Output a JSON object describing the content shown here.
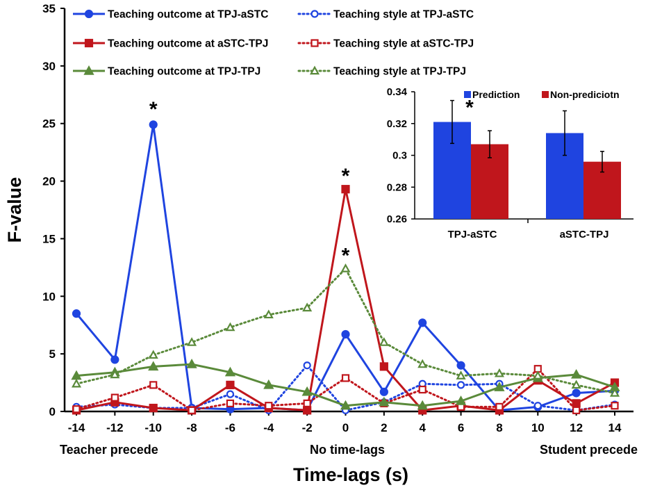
{
  "chart_data": [
    {
      "type": "line",
      "xlabel": "Time-lags (s)",
      "ylabel": "F-value",
      "x": [
        -14,
        -12,
        -10,
        -8,
        -6,
        -4,
        -2,
        0,
        2,
        4,
        6,
        8,
        10,
        12,
        14
      ],
      "x_tick_labels": [
        "-14",
        "-12",
        "-10",
        "-8",
        "-6",
        "-4",
        "-2",
        "0",
        "2",
        "4",
        "6",
        "8",
        "10",
        "12",
        "14"
      ],
      "ylim": [
        0,
        35
      ],
      "y_ticks": [
        0,
        5,
        10,
        15,
        20,
        25,
        30,
        35
      ],
      "grid": false,
      "legend_position": "top-left",
      "series": [
        {
          "name": "Teaching outcome at TPJ-aSTC",
          "color": "#1F44E0",
          "line": "solid",
          "marker": "circle",
          "filled": true,
          "values": [
            8.5,
            4.5,
            24.9,
            0.3,
            0.2,
            0.3,
            0.1,
            6.7,
            1.7,
            7.7,
            4.0,
            0.1,
            0.4,
            1.6,
            1.8
          ]
        },
        {
          "name": "Teaching style at TPJ-aSTC",
          "color": "#1F44E0",
          "line": "dotted",
          "marker": "circle",
          "filled": false,
          "values": [
            0.4,
            0.6,
            0.3,
            0.3,
            1.5,
            0.1,
            4.0,
            0.1,
            0.8,
            2.4,
            2.3,
            2.4,
            0.5,
            0.1,
            0.6
          ]
        },
        {
          "name": "Teaching outcome at aSTC-TPJ",
          "color": "#C0161C",
          "line": "solid",
          "marker": "square",
          "filled": true,
          "values": [
            0.1,
            0.8,
            0.3,
            0.1,
            2.3,
            0.3,
            0.1,
            19.3,
            3.9,
            0.1,
            0.5,
            0.1,
            2.7,
            0.7,
            2.5
          ]
        },
        {
          "name": "Teaching style at aSTC-TPJ",
          "color": "#C0161C",
          "line": "dotted",
          "marker": "square",
          "filled": false,
          "values": [
            0.2,
            1.2,
            2.3,
            0.1,
            0.7,
            0.5,
            0.7,
            2.9,
            0.7,
            1.9,
            0.4,
            0.4,
            3.7,
            0.1,
            0.5
          ]
        },
        {
          "name": "Teaching outcome at TPJ-TPJ",
          "color": "#5A8A3A",
          "line": "solid",
          "marker": "triangle",
          "filled": true,
          "values": [
            3.1,
            3.4,
            3.9,
            4.1,
            3.4,
            2.3,
            1.7,
            0.5,
            0.8,
            0.5,
            0.9,
            2.1,
            2.9,
            3.2,
            2.1
          ]
        },
        {
          "name": "Teaching style at TPJ-TPJ",
          "color": "#5A8A3A",
          "line": "dotted",
          "marker": "triangle",
          "filled": false,
          "values": [
            2.4,
            3.2,
            4.9,
            6.0,
            7.3,
            8.4,
            9.0,
            12.4,
            6.0,
            4.1,
            3.1,
            3.3,
            3.1,
            2.3,
            1.6
          ]
        }
      ],
      "region_labels": [
        "Teacher precede",
        "No time-lags",
        "Student precede"
      ],
      "annotations": [
        {
          "text": "*",
          "x": -10,
          "y": 26.5
        },
        {
          "text": "*",
          "x": 0,
          "y": 20.7
        },
        {
          "text": "*",
          "x": 0,
          "y": 13.8
        }
      ]
    },
    {
      "type": "bar",
      "categories": [
        "TPJ-aSTC",
        "aSTC-TPJ"
      ],
      "ylim": [
        0.26,
        0.34
      ],
      "y_ticks": [
        0.26,
        0.28,
        0.3,
        0.32,
        0.34
      ],
      "y_tick_labels": [
        "0.26",
        "0.28",
        "0.3",
        "0.32",
        "0.34"
      ],
      "legend_position": "top",
      "series": [
        {
          "name": "Prediction",
          "color": "#1F44E0",
          "values": [
            0.321,
            0.314
          ],
          "errors": [
            0.0135,
            0.014
          ]
        },
        {
          "name": "Non-prediciotn",
          "color": "#C0161C",
          "values": [
            0.307,
            0.296
          ],
          "errors": [
            0.0085,
            0.0065
          ]
        }
      ],
      "annotations": [
        {
          "text": "*",
          "category": "TPJ-aSTC",
          "y": 0.3345
        }
      ]
    }
  ]
}
